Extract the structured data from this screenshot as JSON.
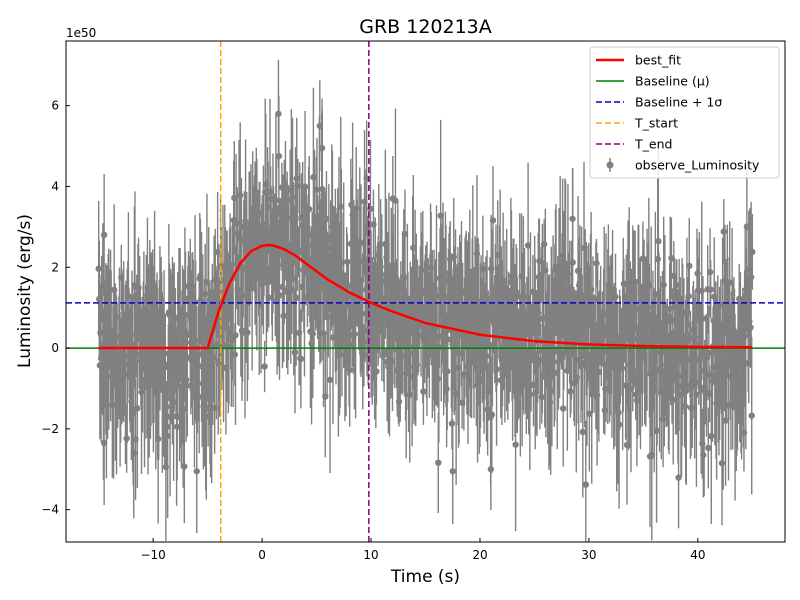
{
  "chart_data": {
    "type": "line",
    "title": "GRB 120213A",
    "xlabel": "Time (s)",
    "ylabel": "Luminosity (erg/s)",
    "offset_label": "1e50",
    "y_scale": 1e+50,
    "xlim": [
      -18,
      48
    ],
    "ylim": [
      -4.8,
      7.6
    ],
    "xticks": [
      -10,
      0,
      10,
      20,
      30,
      40
    ],
    "yticks": [
      -4,
      -2,
      0,
      2,
      4,
      6
    ],
    "xtick_labels": [
      "−10",
      "0",
      "10",
      "20",
      "30",
      "40"
    ],
    "ytick_labels": [
      "−4",
      "−2",
      "0",
      "2",
      "4",
      "6"
    ],
    "legend_position": "upper right",
    "baseline_mu": 0.0,
    "baseline_sigma": 1.12,
    "t_start": -3.8,
    "t_end": 9.8,
    "best_fit": {
      "t0": -5.0,
      "peak_time": 0.6,
      "peak_value": 2.55,
      "x": [
        -5,
        -4,
        -3,
        -2,
        -1,
        0,
        0.6,
        1,
        2,
        3,
        4,
        6,
        8,
        10,
        12,
        15,
        20,
        25,
        30,
        35,
        40,
        45
      ],
      "y": [
        0.0,
        0.9,
        1.6,
        2.1,
        2.4,
        2.53,
        2.55,
        2.54,
        2.45,
        2.3,
        2.1,
        1.7,
        1.38,
        1.12,
        0.9,
        0.62,
        0.33,
        0.17,
        0.09,
        0.05,
        0.03,
        0.02
      ]
    },
    "observations": {
      "t_min": -15,
      "t_max": 45,
      "n_points": 1100,
      "error_bar_range": [
        0.6,
        2.4
      ],
      "notable_points": [
        {
          "x": 1.5,
          "y": 5.8
        },
        {
          "x": 5.3,
          "y": 5.5
        },
        {
          "x": 5.5,
          "y": 4.95
        },
        {
          "x": 9.6,
          "y": 4.2
        },
        {
          "x": 12.0,
          "y": 3.7
        },
        {
          "x": 28.5,
          "y": 3.2
        },
        {
          "x": 44.5,
          "y": 3.0
        },
        {
          "x": -14.5,
          "y": 2.8
        },
        {
          "x": -6.0,
          "y": -3.05
        },
        {
          "x": 17.5,
          "y": -3.05
        },
        {
          "x": 21.0,
          "y": -3.0
        },
        {
          "x": 40.5,
          "y": -2.65
        },
        {
          "x": -14.5,
          "y": -2.35
        },
        {
          "x": 5.8,
          "y": -1.2
        },
        {
          "x": 33.5,
          "y": -2.4
        }
      ]
    },
    "series": [
      {
        "name": "best_fit",
        "style": "solid",
        "color": "#ff0000"
      },
      {
        "name": "Baseline (μ)",
        "style": "solid",
        "color": "#008000"
      },
      {
        "name": "Baseline + 1σ",
        "style": "dashed",
        "color": "#0000cd"
      },
      {
        "name": "T_start",
        "style": "dashed",
        "color": "#ffa500"
      },
      {
        "name": "T_end",
        "style": "dashed",
        "color": "#800080"
      },
      {
        "name": "observe_Luminosity",
        "style": "errorbar",
        "color": "#808080"
      }
    ]
  }
}
